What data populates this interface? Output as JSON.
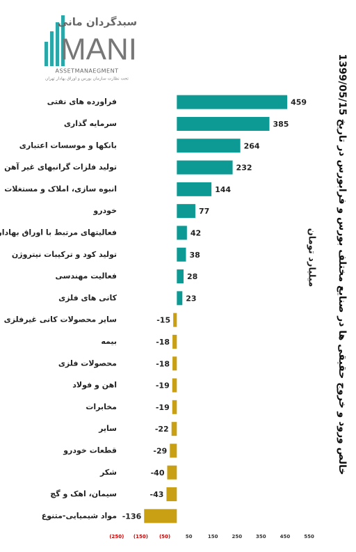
{
  "logo": {
    "name": "سبدگردان مانی",
    "brand": "MANI",
    "tagline": "ASSETMANAEGMENT",
    "note": "تحت نظارت سازمان بورس و اوراق بهادار تهران"
  },
  "chart_data": {
    "type": "bar",
    "orientation": "horizontal",
    "title": "خالص ورود و خروج حقیقی ها در صنایع مختلف بورس و فرابورس در تاریخ 1399/05/15",
    "subtitle": "میلیارد تومان",
    "categories": [
      "فراورده های نفتی",
      "سرمایه گذاری",
      "بانکها و موسسات اعتباری",
      "تولید فلزات گرانبهای غیر آهن",
      "انبوه سازی، املاک و مستغلات",
      "خودرو",
      "فعالیتهای مرتبط با اوراق بهادار",
      "تولید کود و ترکیبات نیتروژن",
      "فعالیت مهندسی",
      "کانی های فلزی",
      "سایر محصولات کانی غیرفلزی",
      "بیمه",
      "محصولات فلزی",
      "اهن و فولاد",
      "مخابرات",
      "سایر",
      "قطعات خودرو",
      "شکر",
      "سیمان، اهک و گچ",
      "مواد شیمیایی-متنوع"
    ],
    "values": [
      459,
      385,
      264,
      232,
      144,
      77,
      42,
      38,
      28,
      23,
      -15,
      -18,
      -18,
      -19,
      -19,
      -22,
      -29,
      -40,
      -43,
      -136
    ],
    "color": "#0e9a94",
    "negative_color": "#c9a013",
    "xlim": [
      -290,
      560
    ],
    "xticks": [
      {
        "value": -250,
        "label": "(250)"
      },
      {
        "value": -150,
        "label": "(150)"
      },
      {
        "value": -50,
        "label": "(50)"
      },
      50,
      150,
      250,
      350,
      450,
      550
    ],
    "negative_tick_color": "#cc0000",
    "grid": false
  }
}
